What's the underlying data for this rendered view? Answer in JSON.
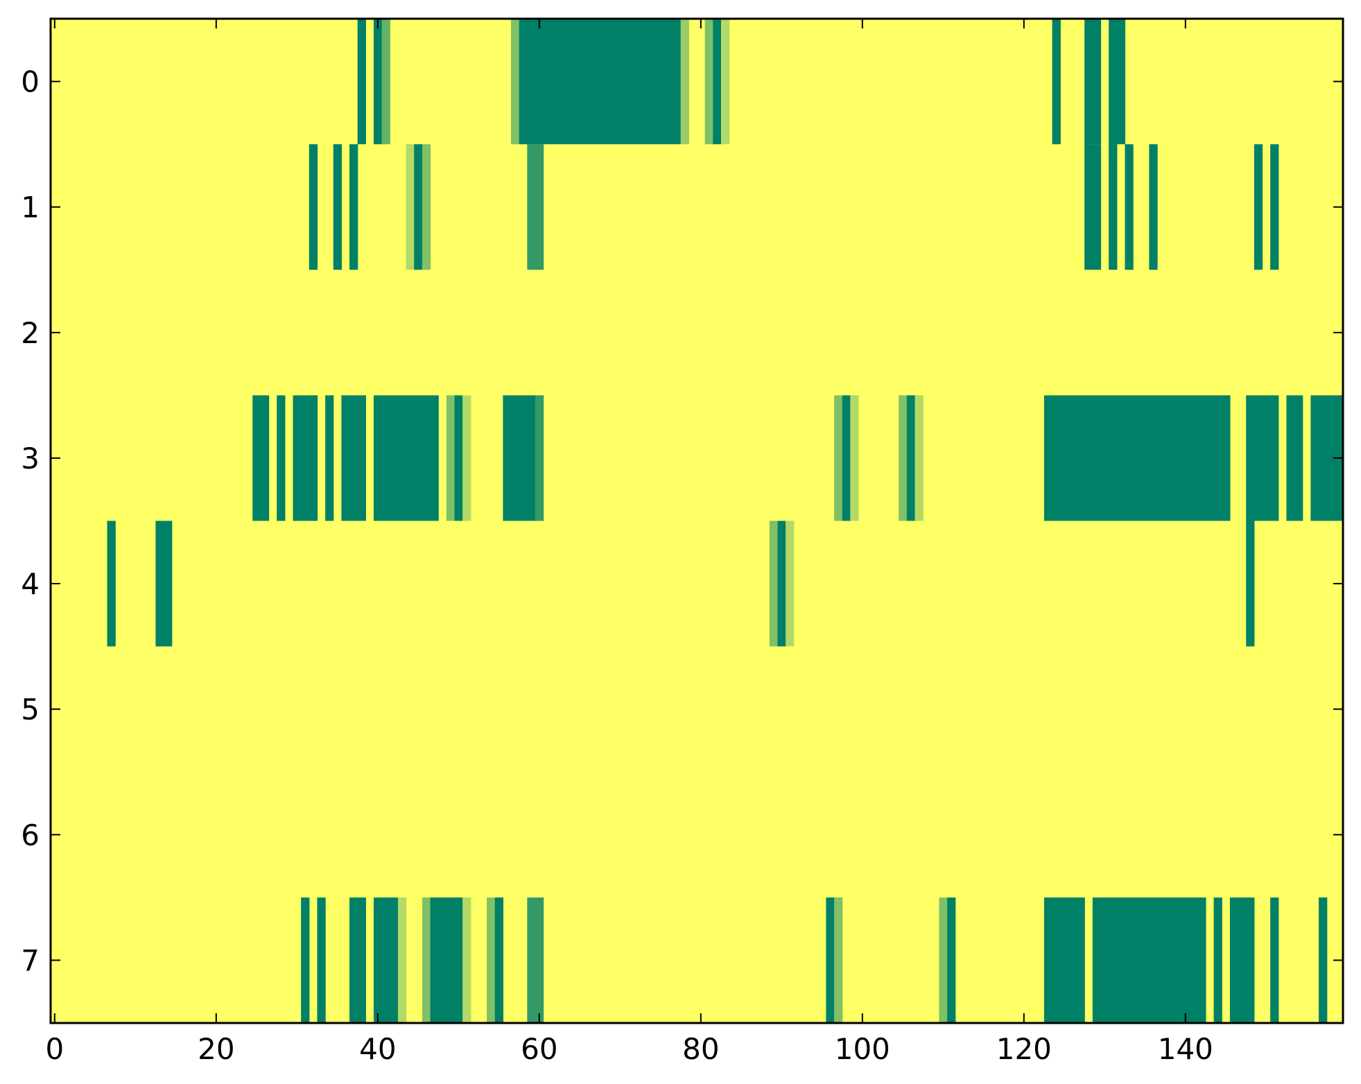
{
  "chart_data": {
    "type": "heatmap",
    "title": "",
    "xlabel": "",
    "ylabel": "",
    "xlim": [
      -0.5,
      159.5
    ],
    "ylim": [
      7.5,
      -0.5
    ],
    "x_ticks": [
      0,
      20,
      40,
      60,
      80,
      100,
      120,
      140
    ],
    "y_ticks": [
      0,
      1,
      2,
      3,
      4,
      5,
      6,
      7
    ],
    "n_columns": 160,
    "n_rows": 8,
    "grid": false,
    "legend": "none",
    "colormap": "summer_r",
    "value_range": [
      0,
      1
    ],
    "colors": {
      "background": "#ffff66",
      "low": "#ffff66",
      "high": "#008066",
      "frame": "#000000"
    },
    "default_value": 0,
    "rows": [
      {
        "row": 0,
        "cells": [
          [
            38,
            1
          ],
          [
            40,
            1
          ],
          [
            41,
            0.6
          ],
          [
            57,
            0.5
          ],
          [
            58,
            1
          ],
          [
            59,
            1
          ],
          [
            60,
            1
          ],
          [
            61,
            1
          ],
          [
            62,
            1
          ],
          [
            63,
            1
          ],
          [
            64,
            1
          ],
          [
            65,
            1
          ],
          [
            66,
            1
          ],
          [
            67,
            1
          ],
          [
            68,
            1
          ],
          [
            69,
            1
          ],
          [
            70,
            1
          ],
          [
            71,
            1
          ],
          [
            72,
            1
          ],
          [
            73,
            1
          ],
          [
            74,
            1
          ],
          [
            75,
            1
          ],
          [
            76,
            1
          ],
          [
            77,
            1
          ],
          [
            78,
            0.4
          ],
          [
            81,
            0.5
          ],
          [
            82,
            1
          ],
          [
            83,
            0.3
          ],
          [
            124,
            1
          ],
          [
            128,
            1
          ],
          [
            129,
            1
          ],
          [
            131,
            1
          ],
          [
            132,
            1
          ]
        ]
      },
      {
        "row": 1,
        "cells": [
          [
            32,
            1
          ],
          [
            35,
            1
          ],
          [
            37,
            1
          ],
          [
            44,
            0.3
          ],
          [
            45,
            1
          ],
          [
            46,
            0.5
          ],
          [
            59,
            0.8
          ],
          [
            60,
            0.8
          ],
          [
            128,
            1
          ],
          [
            129,
            1
          ],
          [
            131,
            1
          ],
          [
            133,
            1
          ],
          [
            136,
            1
          ],
          [
            149,
            1
          ],
          [
            151,
            1
          ]
        ]
      },
      {
        "row": 2,
        "cells": []
      },
      {
        "row": 3,
        "cells": [
          [
            25,
            1
          ],
          [
            26,
            1
          ],
          [
            28,
            1
          ],
          [
            30,
            1
          ],
          [
            31,
            1
          ],
          [
            32,
            1
          ],
          [
            34,
            1
          ],
          [
            36,
            1
          ],
          [
            37,
            1
          ],
          [
            38,
            1
          ],
          [
            40,
            1
          ],
          [
            41,
            1
          ],
          [
            42,
            1
          ],
          [
            43,
            1
          ],
          [
            44,
            1
          ],
          [
            45,
            1
          ],
          [
            46,
            1
          ],
          [
            47,
            1
          ],
          [
            49,
            0.5
          ],
          [
            50,
            1
          ],
          [
            51,
            0.3
          ],
          [
            56,
            1
          ],
          [
            57,
            1
          ],
          [
            58,
            1
          ],
          [
            59,
            1
          ],
          [
            60,
            0.8
          ],
          [
            97,
            0.5
          ],
          [
            98,
            1
          ],
          [
            99,
            0.3
          ],
          [
            105,
            0.5
          ],
          [
            106,
            1
          ],
          [
            107,
            0.3
          ],
          [
            123,
            1
          ],
          [
            124,
            1
          ],
          [
            125,
            1
          ],
          [
            126,
            1
          ],
          [
            127,
            1
          ],
          [
            128,
            1
          ],
          [
            129,
            1
          ],
          [
            130,
            1
          ],
          [
            131,
            1
          ],
          [
            132,
            1
          ],
          [
            133,
            1
          ],
          [
            134,
            1
          ],
          [
            135,
            1
          ],
          [
            136,
            1
          ],
          [
            137,
            1
          ],
          [
            138,
            1
          ],
          [
            139,
            1
          ],
          [
            140,
            1
          ],
          [
            141,
            1
          ],
          [
            142,
            1
          ],
          [
            143,
            1
          ],
          [
            144,
            1
          ],
          [
            145,
            1
          ],
          [
            148,
            1
          ],
          [
            149,
            1
          ],
          [
            150,
            1
          ],
          [
            151,
            1
          ],
          [
            153,
            1
          ],
          [
            154,
            1
          ],
          [
            156,
            1
          ],
          [
            157,
            1
          ],
          [
            158,
            1
          ],
          [
            159,
            1
          ]
        ]
      },
      {
        "row": 4,
        "cells": [
          [
            7,
            1
          ],
          [
            13,
            1
          ],
          [
            14,
            1
          ],
          [
            89,
            0.5
          ],
          [
            90,
            1
          ],
          [
            91,
            0.3
          ],
          [
            148,
            1
          ]
        ]
      },
      {
        "row": 5,
        "cells": []
      },
      {
        "row": 6,
        "cells": []
      },
      {
        "row": 7,
        "cells": [
          [
            31,
            1
          ],
          [
            33,
            1
          ],
          [
            37,
            1
          ],
          [
            38,
            1
          ],
          [
            40,
            1
          ],
          [
            41,
            1
          ],
          [
            42,
            1
          ],
          [
            43,
            0.3
          ],
          [
            46,
            0.5
          ],
          [
            47,
            1
          ],
          [
            48,
            1
          ],
          [
            49,
            1
          ],
          [
            50,
            1
          ],
          [
            51,
            0.3
          ],
          [
            54,
            0.5
          ],
          [
            55,
            1
          ],
          [
            59,
            0.8
          ],
          [
            60,
            0.8
          ],
          [
            96,
            1
          ],
          [
            97,
            0.5
          ],
          [
            110,
            0.5
          ],
          [
            111,
            1
          ],
          [
            123,
            1
          ],
          [
            124,
            1
          ],
          [
            125,
            1
          ],
          [
            126,
            1
          ],
          [
            127,
            1
          ],
          [
            129,
            1
          ],
          [
            130,
            1
          ],
          [
            131,
            1
          ],
          [
            132,
            1
          ],
          [
            133,
            1
          ],
          [
            134,
            1
          ],
          [
            135,
            1
          ],
          [
            136,
            1
          ],
          [
            137,
            1
          ],
          [
            138,
            1
          ],
          [
            139,
            1
          ],
          [
            140,
            1
          ],
          [
            141,
            1
          ],
          [
            142,
            1
          ],
          [
            144,
            1
          ],
          [
            146,
            1
          ],
          [
            147,
            1
          ],
          [
            148,
            1
          ],
          [
            151,
            1
          ],
          [
            157,
            1
          ]
        ]
      }
    ]
  }
}
